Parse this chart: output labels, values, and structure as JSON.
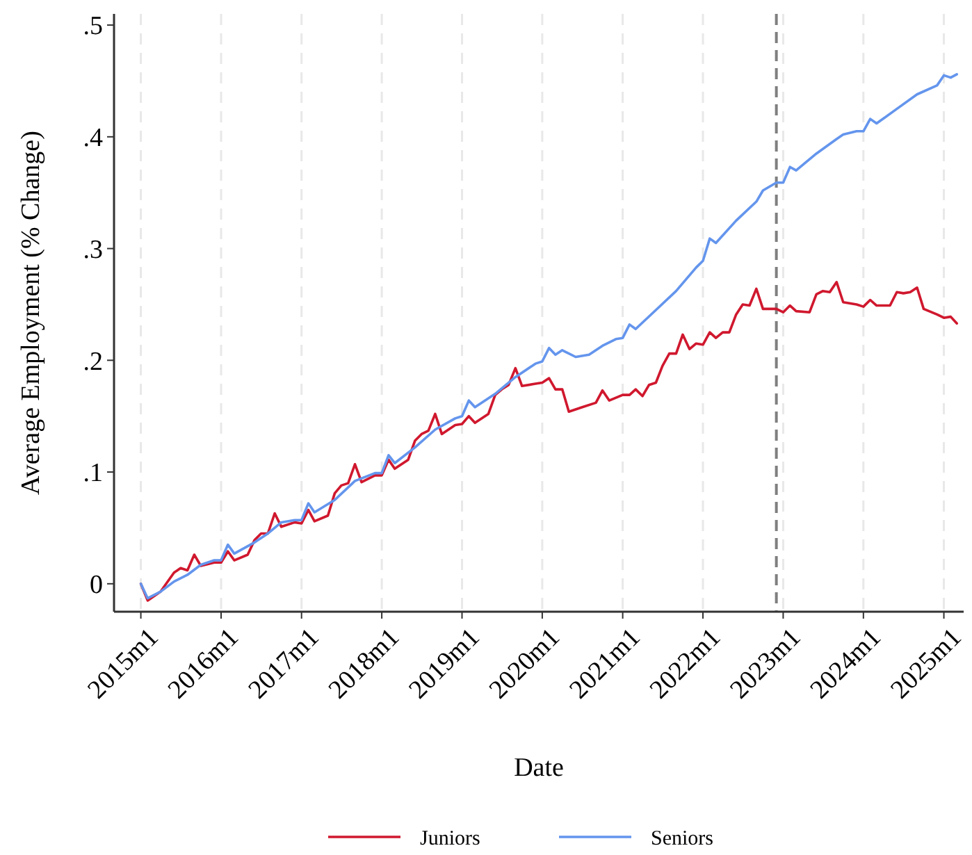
{
  "chart_data": {
    "type": "line",
    "xlabel": "Date",
    "ylabel": "Average Employment (% Change)",
    "xlim": [
      "2014-09",
      "2025-04"
    ],
    "ylim": [
      -0.025,
      0.51
    ],
    "xticks": [
      {
        "value": "2015-01",
        "label": "2015m1"
      },
      {
        "value": "2016-01",
        "label": "2016m1"
      },
      {
        "value": "2017-01",
        "label": "2017m1"
      },
      {
        "value": "2018-01",
        "label": "2018m1"
      },
      {
        "value": "2019-01",
        "label": "2019m1"
      },
      {
        "value": "2020-01",
        "label": "2020m1"
      },
      {
        "value": "2021-01",
        "label": "2021m1"
      },
      {
        "value": "2022-01",
        "label": "2022m1"
      },
      {
        "value": "2023-01",
        "label": "2023m1"
      },
      {
        "value": "2024-01",
        "label": "2024m1"
      },
      {
        "value": "2025-01",
        "label": "2025m1"
      }
    ],
    "yticks": [
      0,
      {
        "value": 0.1,
        "label": ".1"
      },
      {
        "value": 0.2,
        "label": ".2"
      },
      {
        "value": 0.3,
        "label": ".3"
      },
      {
        "value": 0.4,
        "label": ".4"
      },
      {
        "value": 0.5,
        "label": ".5"
      }
    ],
    "grid": "x",
    "legend": "bottom",
    "ref_lines": [
      {
        "axis": "x",
        "value": "2022-12",
        "color": "#7f7f7f",
        "line_style": "dashed"
      }
    ],
    "series": [
      {
        "name": "Juniors",
        "color": "#d0182e",
        "x": [
          "2015-01",
          "2015-02",
          "2015-04",
          "2015-06",
          "2015-07",
          "2015-08",
          "2015-09",
          "2015-10",
          "2015-12",
          "2016-01",
          "2016-02",
          "2016-03",
          "2016-05",
          "2016-06",
          "2016-07",
          "2016-08",
          "2016-09",
          "2016-10",
          "2016-12",
          "2017-01",
          "2017-02",
          "2017-03",
          "2017-05",
          "2017-06",
          "2017-07",
          "2017-08",
          "2017-09",
          "2017-10",
          "2017-12",
          "2018-01",
          "2018-02",
          "2018-03",
          "2018-05",
          "2018-06",
          "2018-07",
          "2018-08",
          "2018-09",
          "2018-10",
          "2018-12",
          "2019-01",
          "2019-02",
          "2019-03",
          "2019-05",
          "2019-06",
          "2019-07",
          "2019-08",
          "2019-09",
          "2019-10",
          "2019-12",
          "2020-01",
          "2020-02",
          "2020-03",
          "2020-04",
          "2020-05",
          "2020-07",
          "2020-09",
          "2020-10",
          "2020-11",
          "2021-01",
          "2021-02",
          "2021-03",
          "2021-04",
          "2021-05",
          "2021-06",
          "2021-07",
          "2021-08",
          "2021-09",
          "2021-10",
          "2021-11",
          "2021-12",
          "2022-01",
          "2022-02",
          "2022-03",
          "2022-04",
          "2022-05",
          "2022-06",
          "2022-07",
          "2022-08",
          "2022-09",
          "2022-10",
          "2022-12",
          "2023-01",
          "2023-02",
          "2023-03",
          "2023-05",
          "2023-06",
          "2023-07",
          "2023-08",
          "2023-09",
          "2023-10",
          "2023-12",
          "2024-01",
          "2024-02",
          "2024-03",
          "2024-05",
          "2024-06",
          "2024-07",
          "2024-08",
          "2024-09",
          "2024-10",
          "2024-12",
          "2025-01",
          "2025-02",
          "2025-03"
        ],
        "values": [
          0,
          -0.015,
          -0.007,
          0.01,
          0.014,
          0.012,
          0.026,
          0.016,
          0.019,
          0.019,
          0.029,
          0.021,
          0.026,
          0.039,
          0.045,
          0.045,
          0.063,
          0.051,
          0.055,
          0.054,
          0.066,
          0.056,
          0.061,
          0.081,
          0.088,
          0.09,
          0.107,
          0.091,
          0.097,
          0.097,
          0.111,
          0.103,
          0.111,
          0.128,
          0.134,
          0.137,
          0.152,
          0.134,
          0.142,
          0.143,
          0.15,
          0.144,
          0.152,
          0.169,
          0.174,
          0.178,
          0.193,
          0.177,
          0.179,
          0.18,
          0.184,
          0.174,
          0.174,
          0.154,
          0.158,
          0.162,
          0.173,
          0.164,
          0.169,
          0.169,
          0.174,
          0.168,
          0.178,
          0.18,
          0.195,
          0.206,
          0.206,
          0.223,
          0.21,
          0.215,
          0.214,
          0.225,
          0.22,
          0.225,
          0.225,
          0.241,
          0.25,
          0.249,
          0.264,
          0.246,
          0.246,
          0.243,
          0.249,
          0.244,
          0.243,
          0.259,
          0.262,
          0.261,
          0.27,
          0.252,
          0.25,
          0.248,
          0.254,
          0.249,
          0.249,
          0.261,
          0.26,
          0.261,
          0.265,
          0.246,
          0.241,
          0.238,
          0.239,
          0.233
        ]
      },
      {
        "name": "Seniors",
        "color": "#6495ed",
        "x": [
          "2015-01",
          "2015-02",
          "2015-04",
          "2015-06",
          "2015-08",
          "2015-10",
          "2015-12",
          "2016-01",
          "2016-02",
          "2016-03",
          "2016-06",
          "2016-08",
          "2016-10",
          "2016-12",
          "2017-01",
          "2017-02",
          "2017-03",
          "2017-06",
          "2017-09",
          "2017-12",
          "2018-01",
          "2018-02",
          "2018-03",
          "2018-06",
          "2018-09",
          "2018-12",
          "2019-01",
          "2019-02",
          "2019-03",
          "2019-06",
          "2019-09",
          "2019-12",
          "2020-01",
          "2020-02",
          "2020-03",
          "2020-04",
          "2020-06",
          "2020-08",
          "2020-10",
          "2020-12",
          "2021-01",
          "2021-02",
          "2021-03",
          "2021-06",
          "2021-09",
          "2021-12",
          "2022-01",
          "2022-02",
          "2022-03",
          "2022-06",
          "2022-09",
          "2022-10",
          "2022-12",
          "2023-01",
          "2023-02",
          "2023-03",
          "2023-06",
          "2023-09",
          "2023-10",
          "2023-12",
          "2024-01",
          "2024-02",
          "2024-03",
          "2024-06",
          "2024-09",
          "2024-12",
          "2025-01",
          "2025-02",
          "2025-03"
        ],
        "values": [
          0,
          -0.013,
          -0.007,
          0.002,
          0.008,
          0.017,
          0.021,
          0.021,
          0.035,
          0.027,
          0.037,
          0.045,
          0.055,
          0.057,
          0.057,
          0.072,
          0.064,
          0.075,
          0.092,
          0.099,
          0.099,
          0.115,
          0.108,
          0.122,
          0.138,
          0.148,
          0.15,
          0.164,
          0.158,
          0.17,
          0.185,
          0.197,
          0.199,
          0.211,
          0.205,
          0.209,
          0.203,
          0.205,
          0.213,
          0.219,
          0.22,
          0.232,
          0.228,
          0.245,
          0.262,
          0.283,
          0.289,
          0.309,
          0.305,
          0.325,
          0.342,
          0.352,
          0.359,
          0.359,
          0.373,
          0.37,
          0.385,
          0.398,
          0.402,
          0.405,
          0.405,
          0.416,
          0.412,
          0.425,
          0.438,
          0.446,
          0.455,
          0.453,
          0.456
        ]
      }
    ]
  }
}
